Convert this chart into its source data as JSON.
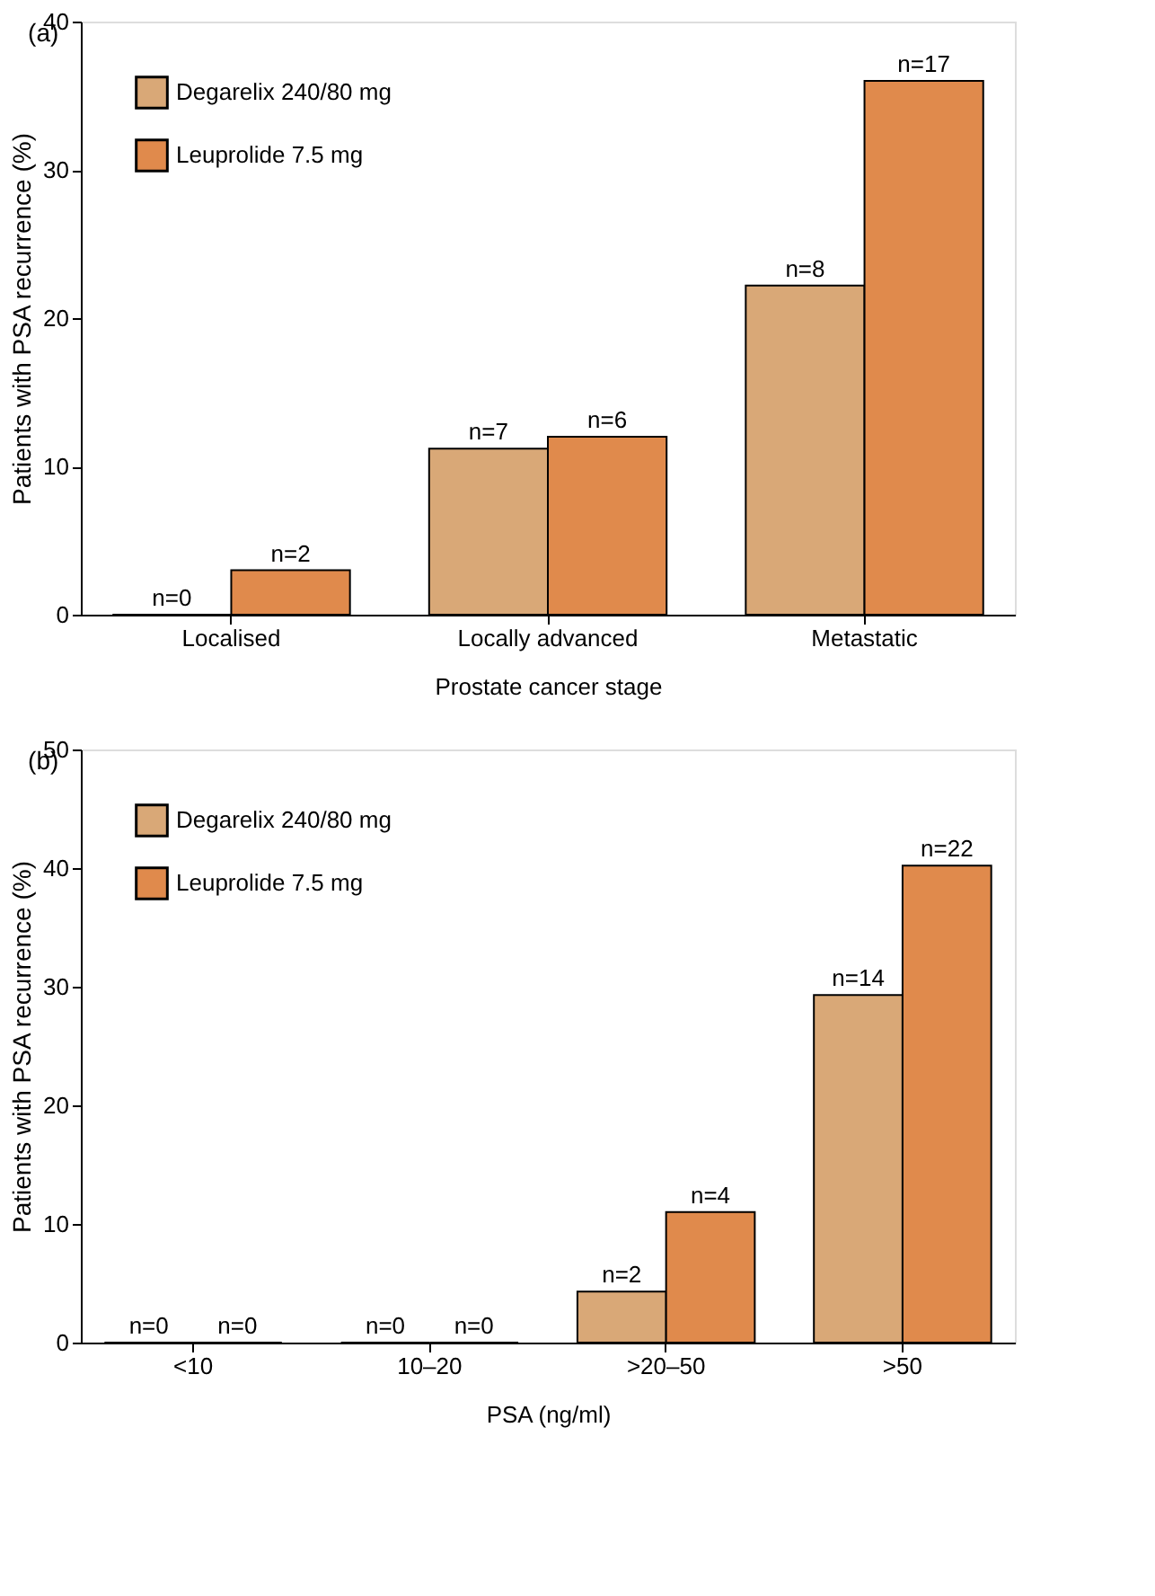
{
  "chart_data": [
    {
      "type": "bar",
      "title": "(a)",
      "xlabel": "Prostate cancer stage",
      "ylabel": "Patients with PSA recurrence (%)",
      "categories": [
        "Localised",
        "Locally advanced",
        "Metastatic"
      ],
      "ylim": [
        0,
        40
      ],
      "yticks": [
        0,
        10,
        20,
        30,
        40
      ],
      "legend": "top left",
      "grid": false,
      "series": [
        {
          "name": "Degarelix 240/80 mg",
          "color": "#d9a877",
          "values": [
            0,
            11.2,
            22.2
          ]
        },
        {
          "name": "Leuprolide 7.5 mg",
          "color": "#e08a4c",
          "values": [
            3,
            12,
            36
          ]
        }
      ],
      "annotations": [
        {
          "text": "n=0",
          "x": "Localised",
          "y": 0
        },
        {
          "text": "n=2",
          "x": "Localised",
          "y": 3
        },
        {
          "text": "n=7",
          "x": "Locally advanced",
          "y": 11.2
        },
        {
          "text": "n=6",
          "x": "Locally advanced",
          "y": 12
        },
        {
          "text": "n=8",
          "x": "Metastatic",
          "y": 22.2
        },
        {
          "text": "n=17",
          "x": "Metastatic",
          "y": 36
        }
      ]
    },
    {
      "type": "bar",
      "title": "(b)",
      "xlabel": "PSA (ng/ml)",
      "ylabel": "Patients with PSA recurrence (%)",
      "categories": [
        "<10",
        "10–20",
        ">20–50",
        ">50"
      ],
      "ylim": [
        0,
        50
      ],
      "yticks": [
        0,
        10,
        20,
        30,
        40,
        50
      ],
      "legend": "top left",
      "grid": false,
      "series": [
        {
          "name": "Degarelix 240/80 mg",
          "color": "#d9a877",
          "values": [
            0,
            0,
            4.3,
            29.3
          ]
        },
        {
          "name": "Leuprolide 7.5 mg",
          "color": "#e08a4c",
          "values": [
            0,
            0,
            11,
            40.2
          ]
        }
      ],
      "annotations": [
        {
          "text": "n=0",
          "x": "<10",
          "y": 0
        },
        {
          "text": "n=0",
          "x": "<10",
          "y": 0
        },
        {
          "text": "n=0",
          "x": "10–20",
          "y": 0
        },
        {
          "text": "n=0",
          "x": "10–20",
          "y": 0
        },
        {
          "text": "n=2",
          "x": ">20–50",
          "y": 4.3
        },
        {
          "text": "n=4",
          "x": ">20–50",
          "y": 11
        },
        {
          "text": "n=14",
          "x": ">50",
          "y": 29.3
        },
        {
          "text": "n=22",
          "x": ">50",
          "y": 40.2
        }
      ]
    }
  ]
}
